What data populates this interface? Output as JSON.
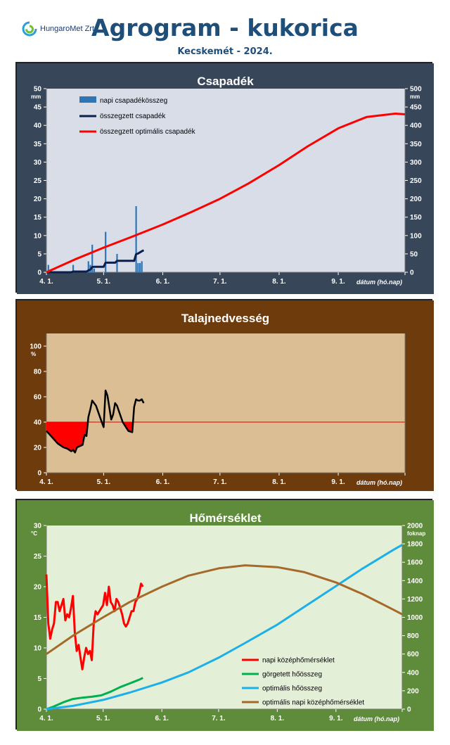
{
  "header": {
    "logo_text": "HungaroMet Zrt.",
    "title": "Agrogram - kukorica",
    "subtitle": "Kecskemét - 2024."
  },
  "colors": {
    "precip_bg": "#374658",
    "precip_plot": "#d9dde8",
    "soil_bg": "#6e3c0c",
    "soil_plot": "#dcbe94",
    "temp_bg": "#5f8c3a",
    "temp_plot": "#e4efd7"
  },
  "chart_data": [
    {
      "type": "bar",
      "title": "Csapadék",
      "xlabel": "dátum (hó.nap)",
      "ylabel": "mm",
      "y2label": "mm",
      "x_ticks": [
        "4. 1.",
        "5. 1.",
        "6. 1.",
        "7. 1.",
        "8. 1.",
        "9. 1."
      ],
      "ylim": [
        0,
        50
      ],
      "y2lim": [
        0,
        500
      ],
      "y_ticks": [
        0,
        5,
        10,
        15,
        20,
        25,
        30,
        35,
        40,
        45,
        50
      ],
      "y2_ticks": [
        0,
        50,
        100,
        150,
        200,
        250,
        300,
        350,
        400,
        450,
        500
      ],
      "legend": [
        "napi csapadékösszeg",
        "összegzett csapadék",
        "összegzett optimális csapadék"
      ],
      "series": [
        {
          "name": "napi csapadékösszeg",
          "axis": "left",
          "color": "#2e75b6",
          "x": [
            "2024-04-02",
            "2024-04-15",
            "2024-04-23",
            "2024-04-24",
            "2024-04-25",
            "2024-04-26",
            "2024-05-02",
            "2024-05-08",
            "2024-05-18",
            "2024-05-19",
            "2024-05-20",
            "2024-05-21"
          ],
          "y": [
            2,
            2,
            3,
            2,
            7.5,
            1,
            11,
            5,
            18,
            2.5,
            2.5,
            3
          ]
        },
        {
          "name": "összegzett csapadék",
          "axis": "right",
          "color": "#0b1f4e",
          "x": [
            "2024-04-01",
            "2024-04-14",
            "2024-04-15",
            "2024-04-22",
            "2024-04-23",
            "2024-04-24",
            "2024-04-25",
            "2024-04-26",
            "2024-05-01",
            "2024-05-02",
            "2024-05-07",
            "2024-05-08",
            "2024-05-17",
            "2024-05-18",
            "2024-05-19",
            "2024-05-20",
            "2024-05-21",
            "2024-05-22"
          ],
          "y": [
            0,
            0,
            2,
            2,
            5,
            7,
            14,
            15,
            15,
            26,
            26,
            31,
            31,
            49,
            51,
            54,
            57,
            60
          ]
        },
        {
          "name": "összegzett optimális csapadék",
          "axis": "right",
          "color": "#ff0000",
          "x": [
            "2024-04-01",
            "2024-04-16",
            "2024-05-01",
            "2024-05-16",
            "2024-06-01",
            "2024-06-16",
            "2024-07-01",
            "2024-07-16",
            "2024-08-01",
            "2024-08-16",
            "2024-09-01",
            "2024-09-16",
            "2024-10-01",
            "2024-10-06"
          ],
          "y": [
            0,
            35,
            67,
            97,
            130,
            164,
            200,
            242,
            292,
            343,
            392,
            423,
            432,
            430
          ]
        }
      ]
    },
    {
      "type": "line",
      "title": "Talajnedvesség",
      "xlabel": "dátum (hó.nap)",
      "ylabel": "%",
      "x_ticks": [
        "4. 1.",
        "5. 1.",
        "6. 1.",
        "7. 1.",
        "8. 1.",
        "9. 1."
      ],
      "ylim": [
        0,
        110
      ],
      "y_ticks": [
        0,
        20,
        40,
        60,
        80,
        100
      ],
      "threshold": 40,
      "series": [
        {
          "name": "talajnedvesség",
          "color": "#000000",
          "x": [
            "2024-04-01",
            "2024-04-04",
            "2024-04-07",
            "2024-04-10",
            "2024-04-12",
            "2024-04-14",
            "2024-04-15",
            "2024-04-16",
            "2024-04-17",
            "2024-04-20",
            "2024-04-21",
            "2024-04-22",
            "2024-04-23",
            "2024-04-24",
            "2024-04-25",
            "2024-04-27",
            "2024-04-30",
            "2024-05-01",
            "2024-05-02",
            "2024-05-03",
            "2024-05-05",
            "2024-05-06",
            "2024-05-07",
            "2024-05-08",
            "2024-05-11",
            "2024-05-14",
            "2024-05-16",
            "2024-05-17",
            "2024-05-18",
            "2024-05-19",
            "2024-05-20",
            "2024-05-21",
            "2024-05-22"
          ],
          "y": [
            33,
            28,
            23,
            20,
            19,
            17,
            18,
            16,
            20,
            22,
            30,
            29,
            44,
            50,
            57,
            53,
            40,
            36,
            65,
            61,
            42,
            46,
            55,
            53,
            40,
            33,
            32,
            52,
            58,
            57,
            57,
            58,
            55
          ]
        }
      ]
    },
    {
      "type": "line",
      "title": "Hőmérséklet",
      "xlabel": "dátum (hó.nap)",
      "ylabel": "°C",
      "y2label": "foknap",
      "x_ticks": [
        "4. 1.",
        "5. 1.",
        "6. 1.",
        "7. 1.",
        "8. 1.",
        "9. 1."
      ],
      "ylim": [
        0,
        30
      ],
      "y2lim": [
        0,
        2000
      ],
      "y_ticks": [
        0,
        5,
        10,
        15,
        20,
        25,
        30
      ],
      "y2_ticks": [
        0,
        200,
        400,
        600,
        800,
        1000,
        1200,
        1400,
        1600,
        1800,
        2000
      ],
      "legend": [
        "napi középhőmérséklet",
        "görgetett hőösszeg",
        "optimális hőösszeg",
        "optimális napi középhőmérséklet"
      ],
      "series": [
        {
          "name": "napi középhőmérséklet",
          "axis": "left",
          "color": "#ff0000",
          "x": [
            "2024-04-01",
            "2024-04-02",
            "2024-04-03",
            "2024-04-04",
            "2024-04-05",
            "2024-04-06",
            "2024-04-07",
            "2024-04-08",
            "2024-04-09",
            "2024-04-10",
            "2024-04-11",
            "2024-04-12",
            "2024-04-13",
            "2024-04-14",
            "2024-04-15",
            "2024-04-16",
            "2024-04-17",
            "2024-04-18",
            "2024-04-19",
            "2024-04-20",
            "2024-04-21",
            "2024-04-22",
            "2024-04-23",
            "2024-04-24",
            "2024-04-25",
            "2024-04-26",
            "2024-04-27",
            "2024-04-28",
            "2024-04-29",
            "2024-04-30",
            "2024-05-01",
            "2024-05-02",
            "2024-05-03",
            "2024-05-04",
            "2024-05-05",
            "2024-05-06",
            "2024-05-07",
            "2024-05-08",
            "2024-05-09",
            "2024-05-10",
            "2024-05-11",
            "2024-05-12",
            "2024-05-13",
            "2024-05-14",
            "2024-05-15",
            "2024-05-16",
            "2024-05-17",
            "2024-05-18",
            "2024-05-19",
            "2024-05-20",
            "2024-05-21",
            "2024-05-22"
          ],
          "y": [
            22,
            14,
            11.5,
            13,
            14,
            17.5,
            17.5,
            16,
            17,
            18,
            14.5,
            15.5,
            15,
            16.5,
            18.5,
            12.5,
            9.5,
            10.5,
            8.5,
            6.5,
            8.5,
            10,
            9,
            9.5,
            8,
            14,
            16,
            15.5,
            16,
            16.5,
            17,
            19,
            17,
            20,
            17.5,
            17,
            16,
            18,
            17.5,
            16.5,
            15.5,
            14,
            13.5,
            14,
            15,
            16,
            16,
            17.5,
            18,
            19,
            20.5,
            20
          ]
        },
        {
          "name": "görgetett hőösszeg",
          "axis": "right",
          "color": "#00b050",
          "x": [
            "2024-04-01",
            "2024-04-05",
            "2024-04-10",
            "2024-04-15",
            "2024-04-20",
            "2024-04-25",
            "2024-04-30",
            "2024-05-05",
            "2024-05-10",
            "2024-05-15",
            "2024-05-20",
            "2024-05-22"
          ],
          "y": [
            0,
            30,
            75,
            110,
            125,
            135,
            150,
            190,
            240,
            280,
            320,
            340
          ]
        },
        {
          "name": "optimális hőösszeg",
          "axis": "right",
          "color": "#1cb0e8",
          "x": [
            "2024-04-01",
            "2024-04-15",
            "2024-05-01",
            "2024-05-15",
            "2024-06-01",
            "2024-06-15",
            "2024-07-01",
            "2024-07-15",
            "2024-08-01",
            "2024-08-15",
            "2024-09-01",
            "2024-09-15",
            "2024-10-01",
            "2024-10-06"
          ],
          "y": [
            0,
            35,
            100,
            180,
            290,
            400,
            560,
            720,
            920,
            1110,
            1340,
            1530,
            1730,
            1790
          ]
        },
        {
          "name": "optimális napi középhőmérséklet",
          "axis": "left",
          "color": "#a5692a",
          "x": [
            "2024-04-01",
            "2024-04-15",
            "2024-05-01",
            "2024-05-15",
            "2024-06-01",
            "2024-06-15",
            "2024-07-01",
            "2024-07-15",
            "2024-08-01",
            "2024-08-15",
            "2024-09-01",
            "2024-09-15",
            "2024-10-01",
            "2024-10-06"
          ],
          "y": [
            9,
            12,
            15,
            17.5,
            20,
            21.8,
            23,
            23.5,
            23.2,
            22.4,
            20.7,
            18.8,
            16.3,
            15.5
          ]
        }
      ]
    }
  ]
}
